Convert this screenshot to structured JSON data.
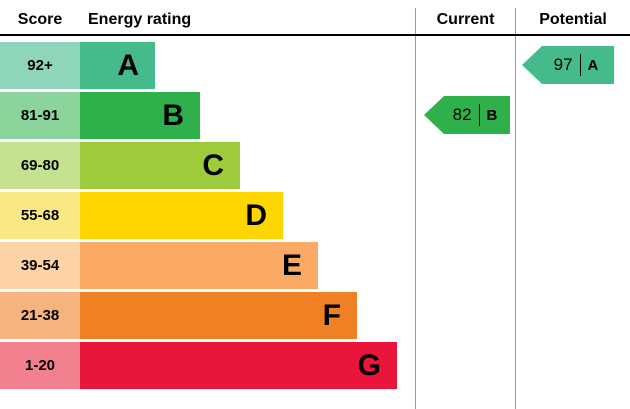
{
  "header": {
    "score": "Score",
    "energy_rating": "Energy rating",
    "current": "Current",
    "potential": "Potential"
  },
  "bands": [
    {
      "score": "92+",
      "letter": "A",
      "color": "#45bb8b",
      "tint": "#8ed5ba"
    },
    {
      "score": "81-91",
      "letter": "B",
      "color": "#2eb04a",
      "tint": "#8bd49b"
    },
    {
      "score": "69-80",
      "letter": "C",
      "color": "#9dcb3c",
      "tint": "#c5e291"
    },
    {
      "score": "55-68",
      "letter": "D",
      "color": "#ffd500",
      "tint": "#f9e883"
    },
    {
      "score": "39-54",
      "letter": "E",
      "color": "#fbaa65",
      "tint": "#fdd2a5"
    },
    {
      "score": "21-38",
      "letter": "F",
      "color": "#ef8023",
      "tint": "#f6b37e"
    },
    {
      "score": "1-20",
      "letter": "G",
      "color": "#e9153b",
      "tint": "#f3808f"
    }
  ],
  "current": {
    "value": "82",
    "letter": "B",
    "band_index": 1,
    "color": "#2eb04a"
  },
  "potential": {
    "value": "97",
    "letter": "A",
    "band_index": 0,
    "color": "#45bb8b"
  },
  "chart_data": {
    "type": "bar",
    "title": "Energy rating",
    "categories": [
      "A",
      "B",
      "C",
      "D",
      "E",
      "F",
      "G"
    ],
    "score_ranges": [
      "92+",
      "81-91",
      "69-80",
      "55-68",
      "39-54",
      "21-38",
      "1-20"
    ],
    "colors": [
      "#45bb8b",
      "#2eb04a",
      "#9dcb3c",
      "#ffd500",
      "#fbaa65",
      "#ef8023",
      "#e9153b"
    ],
    "legend_position": "none",
    "grid": false,
    "current": {
      "score": 82,
      "rating": "B"
    },
    "potential": {
      "score": 97,
      "rating": "A"
    }
  }
}
